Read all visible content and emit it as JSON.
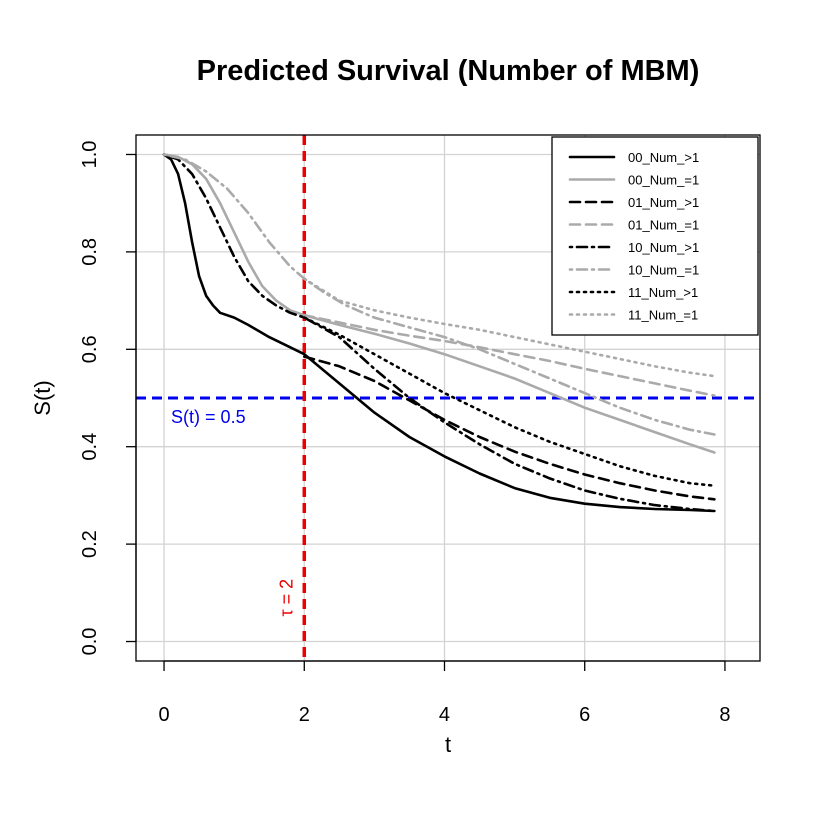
{
  "chart_data": {
    "type": "line",
    "title": "Predicted Survival (Number of MBM)",
    "xlabel": "t",
    "ylabel": "S(t)",
    "xlim": [
      -0.4,
      8.5
    ],
    "ylim": [
      -0.04,
      1.04
    ],
    "xticks": [
      0,
      2,
      4,
      6,
      8
    ],
    "yticks": [
      0.0,
      0.2,
      0.4,
      0.6,
      0.8,
      1.0
    ],
    "xtick_labels": [
      "0",
      "2",
      "4",
      "6",
      "8"
    ],
    "ytick_labels": [
      "0.0",
      "0.2",
      "0.4",
      "0.6",
      "0.8",
      "1.0"
    ],
    "grid": true,
    "legend_position": "top-right",
    "series": [
      {
        "name": "00_Num_>1",
        "color": "#000000",
        "dash": "solid",
        "x": [
          0,
          0.1,
          0.2,
          0.3,
          0.4,
          0.5,
          0.6,
          0.7,
          0.8,
          1.0,
          1.2,
          1.5,
          2.0,
          2.5,
          3.0,
          3.5,
          4.0,
          4.5,
          5.0,
          5.5,
          6.0,
          6.5,
          7.0,
          7.5,
          7.85
        ],
        "y": [
          1.0,
          0.99,
          0.96,
          0.9,
          0.82,
          0.75,
          0.71,
          0.69,
          0.675,
          0.665,
          0.65,
          0.625,
          0.59,
          0.53,
          0.47,
          0.42,
          0.38,
          0.345,
          0.315,
          0.295,
          0.283,
          0.276,
          0.272,
          0.27,
          0.268
        ]
      },
      {
        "name": "00_Num_=1",
        "color": "#aaaaaa",
        "dash": "solid",
        "x": [
          0,
          0.2,
          0.4,
          0.6,
          0.8,
          1.0,
          1.2,
          1.4,
          1.6,
          1.8,
          2.0,
          2.5,
          3.0,
          3.5,
          4.0,
          4.5,
          5.0,
          5.5,
          6.0,
          6.5,
          7.0,
          7.5,
          7.85
        ],
        "y": [
          1.0,
          0.995,
          0.98,
          0.95,
          0.9,
          0.84,
          0.78,
          0.73,
          0.7,
          0.68,
          0.67,
          0.65,
          0.632,
          0.612,
          0.59,
          0.565,
          0.54,
          0.51,
          0.48,
          0.455,
          0.43,
          0.405,
          0.388
        ]
      },
      {
        "name": "01_Num_>1",
        "color": "#000000",
        "dash": "dashed",
        "x": [
          2.0,
          2.5,
          3.0,
          3.5,
          4.0,
          4.5,
          5.0,
          5.5,
          6.0,
          6.5,
          7.0,
          7.5,
          7.85
        ],
        "y": [
          0.585,
          0.565,
          0.535,
          0.495,
          0.455,
          0.42,
          0.39,
          0.365,
          0.343,
          0.325,
          0.31,
          0.298,
          0.292
        ]
      },
      {
        "name": "01_Num_=1",
        "color": "#aaaaaa",
        "dash": "dashed",
        "x": [
          2.0,
          2.5,
          3.0,
          3.5,
          4.0,
          4.5,
          5.0,
          5.5,
          6.0,
          6.5,
          7.0,
          7.5,
          7.85
        ],
        "y": [
          0.67,
          0.655,
          0.64,
          0.628,
          0.617,
          0.604,
          0.59,
          0.576,
          0.56,
          0.545,
          0.53,
          0.515,
          0.505
        ]
      },
      {
        "name": "10_Num_>1",
        "color": "#000000",
        "dash": "dotdash",
        "x": [
          0,
          0.2,
          0.4,
          0.6,
          0.8,
          1.0,
          1.2,
          1.4,
          1.6,
          1.8,
          2.0,
          2.5,
          3.0,
          3.5,
          4.0,
          4.5,
          5.0,
          5.5,
          6.0,
          6.5,
          7.0,
          7.5,
          7.85
        ],
        "y": [
          1.0,
          0.99,
          0.96,
          0.91,
          0.85,
          0.79,
          0.74,
          0.71,
          0.69,
          0.675,
          0.665,
          0.625,
          0.56,
          0.5,
          0.45,
          0.405,
          0.365,
          0.335,
          0.31,
          0.293,
          0.28,
          0.272,
          0.268
        ]
      },
      {
        "name": "10_Num_=1",
        "color": "#aaaaaa",
        "dash": "dotdash",
        "x": [
          0,
          0.3,
          0.6,
          0.9,
          1.2,
          1.5,
          1.8,
          2.0,
          2.3,
          2.6,
          3.0,
          3.5,
          4.0,
          4.5,
          5.0,
          5.5,
          6.0,
          6.5,
          7.0,
          7.5,
          7.85
        ],
        "y": [
          1.0,
          0.99,
          0.965,
          0.93,
          0.88,
          0.82,
          0.77,
          0.745,
          0.715,
          0.69,
          0.665,
          0.645,
          0.625,
          0.6,
          0.57,
          0.54,
          0.51,
          0.48,
          0.455,
          0.435,
          0.425
        ]
      },
      {
        "name": "11_Num_>1",
        "color": "#000000",
        "dash": "dotted",
        "x": [
          2.0,
          2.5,
          3.0,
          3.5,
          4.0,
          4.5,
          5.0,
          5.5,
          6.0,
          6.5,
          7.0,
          7.5,
          7.85
        ],
        "y": [
          0.665,
          0.63,
          0.59,
          0.55,
          0.51,
          0.475,
          0.44,
          0.41,
          0.385,
          0.36,
          0.34,
          0.325,
          0.32
        ]
      },
      {
        "name": "11_Num_=1",
        "color": "#aaaaaa",
        "dash": "dotted",
        "x": [
          2.0,
          2.5,
          3.0,
          3.5,
          4.0,
          4.5,
          5.0,
          5.5,
          6.0,
          6.5,
          7.0,
          7.5,
          7.85
        ],
        "y": [
          0.745,
          0.7,
          0.68,
          0.665,
          0.652,
          0.64,
          0.625,
          0.61,
          0.595,
          0.58,
          0.565,
          0.552,
          0.545
        ]
      }
    ],
    "reference_lines": [
      {
        "orientation": "horizontal",
        "value": 0.5,
        "color": "#0000ee",
        "label": "S(t) = 0.5"
      },
      {
        "orientation": "vertical",
        "value": 2,
        "color": "#ee0000",
        "label": "τ = 2"
      }
    ]
  }
}
